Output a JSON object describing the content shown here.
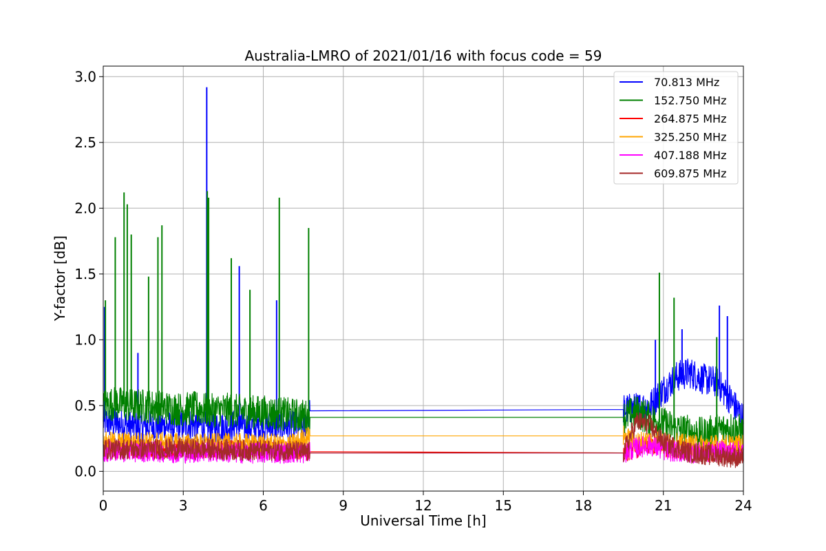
{
  "chart_data": {
    "type": "line",
    "title": "Australia-LMRO of 2021/01/16 with focus code = 59",
    "xlabel": "Universal Time [h]",
    "ylabel": "Y-factor [dB]",
    "xlim": [
      0,
      24
    ],
    "ylim": [
      -0.15,
      3.08
    ],
    "xticks": [
      0,
      3,
      6,
      9,
      12,
      15,
      18,
      21,
      24
    ],
    "yticks": [
      0.0,
      0.5,
      1.0,
      1.5,
      2.0,
      2.5,
      3.0
    ],
    "xtick_labels": [
      "0",
      "3",
      "6",
      "9",
      "12",
      "15",
      "18",
      "21",
      "24"
    ],
    "ytick_labels": [
      "0.0",
      "0.5",
      "1.0",
      "1.5",
      "2.0",
      "2.5",
      "3.0"
    ],
    "grid": true,
    "legend_position": "top-right",
    "data_gap": [
      7.75,
      19.5
    ],
    "series": [
      {
        "name": " 70.813 MHz",
        "color": "#0000ff",
        "x": [
          0,
          0.5,
          1,
          1.5,
          2,
          2.5,
          3,
          3.5,
          3.88,
          4,
          4.5,
          5,
          5.5,
          6,
          6.5,
          7,
          7.5,
          7.75,
          19.5,
          20,
          20.5,
          21,
          21.5,
          22,
          22.5,
          23,
          23.5,
          24
        ],
        "values": [
          0.38,
          0.36,
          0.35,
          0.34,
          0.35,
          0.34,
          0.35,
          0.36,
          0.34,
          0.33,
          0.34,
          0.35,
          0.34,
          0.34,
          0.35,
          0.34,
          0.34,
          0.46,
          0.47,
          0.48,
          0.5,
          0.62,
          0.72,
          0.75,
          0.7,
          0.68,
          0.55,
          0.4
        ],
        "peaks": [
          [
            0.05,
            1.25
          ],
          [
            1.3,
            0.9
          ],
          [
            3.88,
            2.92
          ],
          [
            5.1,
            1.56
          ],
          [
            4.8,
            1.6
          ],
          [
            6.5,
            1.3
          ],
          [
            20.7,
            1.0
          ],
          [
            21.7,
            1.08
          ],
          [
            23.1,
            1.26
          ],
          [
            23.4,
            1.18
          ]
        ]
      },
      {
        "name": "152.750 MHz",
        "color": "#008000",
        "x": [
          0,
          0.5,
          1,
          1.5,
          2,
          2.5,
          3,
          3.5,
          4,
          4.5,
          5,
          5.5,
          6,
          6.5,
          7,
          7.5,
          7.75,
          19.5,
          20,
          20.5,
          21,
          21.5,
          22,
          22.5,
          23,
          23.5,
          24
        ],
        "values": [
          0.5,
          0.52,
          0.5,
          0.5,
          0.49,
          0.48,
          0.47,
          0.48,
          0.46,
          0.47,
          0.46,
          0.45,
          0.45,
          0.44,
          0.43,
          0.42,
          0.41,
          0.41,
          0.45,
          0.4,
          0.36,
          0.32,
          0.3,
          0.28,
          0.31,
          0.33,
          0.3
        ],
        "peaks": [
          [
            0.08,
            1.3
          ],
          [
            0.45,
            1.78
          ],
          [
            0.78,
            2.12
          ],
          [
            0.9,
            2.03
          ],
          [
            1.05,
            1.8
          ],
          [
            1.7,
            1.48
          ],
          [
            2.05,
            1.78
          ],
          [
            2.2,
            1.87
          ],
          [
            3.9,
            2.13
          ],
          [
            3.95,
            2.08
          ],
          [
            4.8,
            1.62
          ],
          [
            5.5,
            1.38
          ],
          [
            6.6,
            2.08
          ],
          [
            7.7,
            1.85
          ],
          [
            20.85,
            1.51
          ],
          [
            21.4,
            1.32
          ],
          [
            23.0,
            1.02
          ]
        ]
      },
      {
        "name": "264.875 MHz",
        "color": "#ff0000",
        "x": [
          0,
          1,
          2,
          3,
          4,
          5,
          6,
          7,
          7.75,
          19.5,
          20,
          20.5,
          21,
          22,
          23,
          24
        ],
        "values": [
          0.17,
          0.17,
          0.17,
          0.17,
          0.16,
          0.17,
          0.16,
          0.16,
          0.15,
          0.14,
          0.17,
          0.2,
          0.18,
          0.15,
          0.14,
          0.14
        ],
        "peaks": []
      },
      {
        "name": "325.250 MHz",
        "color": "#ffa500",
        "x": [
          0,
          1,
          2,
          3,
          4,
          5,
          6,
          7,
          7.75,
          19.5,
          20,
          20.5,
          21,
          22,
          23,
          24
        ],
        "values": [
          0.22,
          0.22,
          0.22,
          0.21,
          0.21,
          0.21,
          0.21,
          0.2,
          0.27,
          0.27,
          0.22,
          0.24,
          0.22,
          0.2,
          0.2,
          0.2
        ],
        "peaks": []
      },
      {
        "name": "407.188 MHz",
        "color": "#ff00ff",
        "x": [
          0,
          1,
          2,
          3,
          4,
          5,
          6,
          7,
          7.75,
          19.5,
          20,
          20.5,
          21,
          22,
          23,
          24
        ],
        "values": [
          0.15,
          0.15,
          0.15,
          0.14,
          0.15,
          0.14,
          0.14,
          0.14,
          0.14,
          0.14,
          0.18,
          0.2,
          0.16,
          0.14,
          0.15,
          0.15
        ],
        "peaks": []
      },
      {
        "name": "609.875 MHz",
        "color": "#a52a2a",
        "x": [
          0,
          1,
          2,
          3,
          4,
          5,
          6,
          7,
          7.75,
          19.5,
          20,
          20.5,
          21,
          22,
          23,
          24
        ],
        "values": [
          0.17,
          0.17,
          0.17,
          0.17,
          0.17,
          0.16,
          0.16,
          0.16,
          0.14,
          0.14,
          0.38,
          0.35,
          0.22,
          0.14,
          0.12,
          0.1
        ],
        "peaks": []
      }
    ]
  }
}
